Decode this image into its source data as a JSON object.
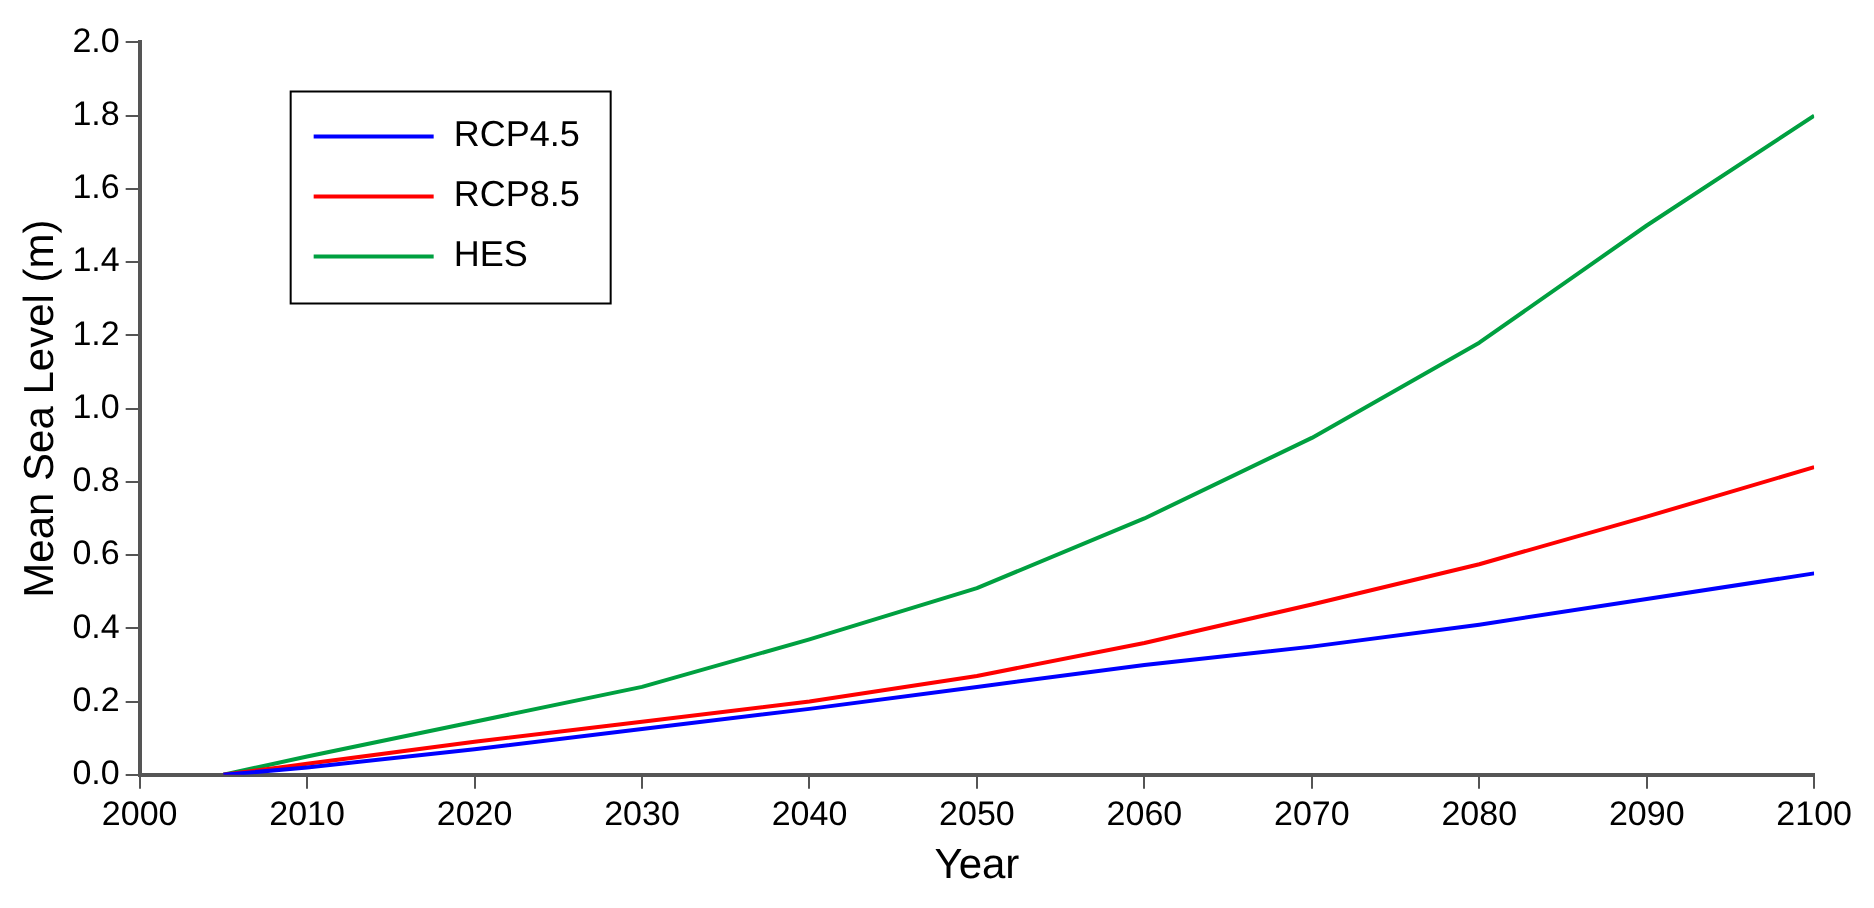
{
  "chart_data": {
    "type": "line",
    "xlabel": "Year",
    "ylabel": "Mean Sea Level (m)",
    "x": [
      2005,
      2010,
      2020,
      2030,
      2040,
      2050,
      2060,
      2070,
      2080,
      2090,
      2100
    ],
    "series": [
      {
        "name": "RCP4.5",
        "color": "#0000ff",
        "values": [
          0,
          0.02,
          0.07,
          0.125,
          0.18,
          0.24,
          0.3,
          0.35,
          0.41,
          0.48,
          0.55
        ]
      },
      {
        "name": "RCP8.5",
        "color": "#ff0000",
        "values": [
          0,
          0.03,
          0.09,
          0.145,
          0.2,
          0.27,
          0.36,
          0.465,
          0.575,
          0.705,
          0.84
        ]
      },
      {
        "name": "HES",
        "color": "#00a040",
        "values": [
          0,
          0.05,
          0.145,
          0.24,
          0.37,
          0.51,
          0.7,
          0.92,
          1.18,
          1.5,
          1.8
        ]
      }
    ],
    "xlim": [
      2000,
      2100
    ],
    "xticks": [
      2000,
      2010,
      2020,
      2030,
      2040,
      2050,
      2060,
      2070,
      2080,
      2090,
      2100
    ],
    "ylim": [
      0,
      2.0
    ],
    "yticks": [
      {
        "value": 0,
        "label": "0.0"
      },
      {
        "value": 0.2,
        "label": "0.2"
      },
      {
        "value": 0.4,
        "label": "0.4"
      },
      {
        "value": 0.6,
        "label": "0.6"
      },
      {
        "value": 0.8,
        "label": "0.8"
      },
      {
        "value": 1.0,
        "label": "1.0"
      },
      {
        "value": 1.2,
        "label": "1.2"
      },
      {
        "value": 1.4,
        "label": "1.4"
      },
      {
        "value": 1.6,
        "label": "1.6"
      },
      {
        "value": 1.8,
        "label": "1.8"
      },
      {
        "value": 2.0,
        "label": "2.0"
      }
    ],
    "grid": false,
    "legend": "top left",
    "marker": "none",
    "line_style": "solid"
  }
}
